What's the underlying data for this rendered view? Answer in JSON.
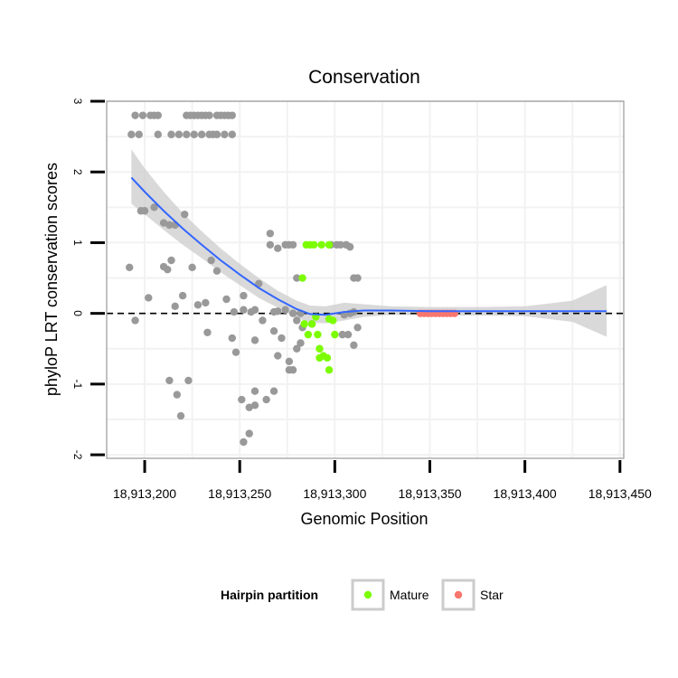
{
  "chart_data": {
    "type": "scatter",
    "title": "Conservation",
    "xlabel": "Genomic Position",
    "ylabel": "phyloP LRT conservation scores",
    "xlim": [
      18913180,
      18913452
    ],
    "ylim": [
      -2.05,
      3.0
    ],
    "x_ticks": [
      18913200,
      18913250,
      18913300,
      18913350,
      18913400,
      18913450
    ],
    "x_tick_labels": [
      "18,913,200",
      "18,913,250",
      "18,913,300",
      "18,913,350",
      "18,913,400",
      "18,913,450"
    ],
    "y_ticks": [
      -2,
      -1,
      0,
      1,
      2,
      3
    ],
    "y_tick_labels": [
      "-2",
      "-1",
      "0",
      "1",
      "2",
      "3"
    ],
    "reference_line": {
      "y": 0,
      "style": "dashed"
    },
    "colors": {
      "other": "#999999",
      "mature": "#7CFC00",
      "star": "#F8766D",
      "smooth_line": "#3366FF",
      "ribbon": "#CCCCCC",
      "panel_grid": "#F2F2F2",
      "panel_border": "#999999"
    },
    "legend": {
      "title": "Hairpin partition",
      "position": "bottom",
      "entries": [
        {
          "label": "Mature",
          "color": "#7CFC00"
        },
        {
          "label": "Star",
          "color": "#F8766D"
        }
      ]
    },
    "series": [
      {
        "name": "Other",
        "color": "#999999",
        "points": [
          [
            18913195,
            2.8
          ],
          [
            18913199,
            2.8
          ],
          [
            18913203,
            2.8
          ],
          [
            18913205,
            2.8
          ],
          [
            18913207,
            2.8
          ],
          [
            18913222,
            2.8
          ],
          [
            18913224,
            2.8
          ],
          [
            18913226,
            2.8
          ],
          [
            18913228,
            2.8
          ],
          [
            18913230,
            2.8
          ],
          [
            18913232,
            2.8
          ],
          [
            18913234,
            2.8
          ],
          [
            18913238,
            2.8
          ],
          [
            18913240,
            2.8
          ],
          [
            18913242,
            2.8
          ],
          [
            18913244,
            2.8
          ],
          [
            18913246,
            2.8
          ],
          [
            18913193,
            2.53
          ],
          [
            18913197,
            2.53
          ],
          [
            18913207,
            2.53
          ],
          [
            18913214,
            2.53
          ],
          [
            18913218,
            2.53
          ],
          [
            18913222,
            2.53
          ],
          [
            18913226,
            2.53
          ],
          [
            18913230,
            2.53
          ],
          [
            18913234,
            2.53
          ],
          [
            18913236,
            2.53
          ],
          [
            18913238,
            2.53
          ],
          [
            18913242,
            2.53
          ],
          [
            18913246,
            2.53
          ],
          [
            18913198,
            1.45
          ],
          [
            18913200,
            1.45
          ],
          [
            18913205,
            1.5
          ],
          [
            18913210,
            1.28
          ],
          [
            18913213,
            1.25
          ],
          [
            18913216,
            1.25
          ],
          [
            18913221,
            1.4
          ],
          [
            18913266,
            1.13
          ],
          [
            18913266,
            0.97
          ],
          [
            18913270,
            0.92
          ],
          [
            18913274,
            0.97
          ],
          [
            18913276,
            0.97
          ],
          [
            18913278,
            0.97
          ],
          [
            18913298,
            0.97
          ],
          [
            18913301,
            0.97
          ],
          [
            18913303,
            0.97
          ],
          [
            18913306,
            0.97
          ],
          [
            18913308,
            0.94
          ],
          [
            18913192,
            0.65
          ],
          [
            18913210,
            0.66
          ],
          [
            18913212,
            0.62
          ],
          [
            18913214,
            0.75
          ],
          [
            18913225,
            0.65
          ],
          [
            18913235,
            0.75
          ],
          [
            18913238,
            0.6
          ],
          [
            18913252,
            0.25
          ],
          [
            18913260,
            0.42
          ],
          [
            18913280,
            0.5
          ],
          [
            18913310,
            0.5
          ],
          [
            18913312,
            0.5
          ],
          [
            18913202,
            0.22
          ],
          [
            18913216,
            0.1
          ],
          [
            18913220,
            0.25
          ],
          [
            18913228,
            0.12
          ],
          [
            18913232,
            0.15
          ],
          [
            18913243,
            0.2
          ],
          [
            18913247,
            0.02
          ],
          [
            18913252,
            0.05
          ],
          [
            18913256,
            0.02
          ],
          [
            18913258,
            0.05
          ],
          [
            18913268,
            0.02
          ],
          [
            18913270,
            0.03
          ],
          [
            18913274,
            0.05
          ],
          [
            18913278,
            0.0
          ],
          [
            18913282,
            0.0
          ],
          [
            18913305,
            -0.02
          ],
          [
            18913308,
            0.0
          ],
          [
            18913310,
            0.02
          ],
          [
            18913195,
            -0.1
          ],
          [
            18913262,
            -0.1
          ],
          [
            18913268,
            -0.25
          ],
          [
            18913272,
            -0.35
          ],
          [
            18913280,
            -0.1
          ],
          [
            18913283,
            -0.2
          ],
          [
            18913288,
            -0.15
          ],
          [
            18913304,
            -0.3
          ],
          [
            18913307,
            -0.3
          ],
          [
            18913310,
            -0.45
          ],
          [
            18913312,
            -0.2
          ],
          [
            18913233,
            -0.27
          ],
          [
            18913246,
            -0.35
          ],
          [
            18913248,
            -0.55
          ],
          [
            18913258,
            -0.38
          ],
          [
            18913270,
            -0.6
          ],
          [
            18913276,
            -0.68
          ],
          [
            18913280,
            -0.5
          ],
          [
            18913282,
            -0.42
          ],
          [
            18913276,
            -0.8
          ],
          [
            18913278,
            -0.8
          ],
          [
            18913213,
            -0.95
          ],
          [
            18913217,
            -1.15
          ],
          [
            18913219,
            -1.45
          ],
          [
            18913223,
            -0.95
          ],
          [
            18913251,
            -1.22
          ],
          [
            18913255,
            -1.33
          ],
          [
            18913258,
            -1.1
          ],
          [
            18913258,
            -1.3
          ],
          [
            18913264,
            -1.22
          ],
          [
            18913268,
            -1.1
          ],
          [
            18913252,
            -1.82
          ],
          [
            18913255,
            -1.7
          ]
        ]
      },
      {
        "name": "Mature",
        "color": "#7CFC00",
        "points": [
          [
            18913283,
            0.5
          ],
          [
            18913285,
            0.97
          ],
          [
            18913287,
            0.97
          ],
          [
            18913289,
            0.97
          ],
          [
            18913293,
            0.97
          ],
          [
            18913297,
            0.97
          ],
          [
            18913284,
            -0.15
          ],
          [
            18913286,
            -0.3
          ],
          [
            18913288,
            -0.15
          ],
          [
            18913290,
            -0.05
          ],
          [
            18913291,
            -0.3
          ],
          [
            18913292,
            -0.5
          ],
          [
            18913294,
            -0.6
          ],
          [
            18913292,
            -0.63
          ],
          [
            18913296,
            -0.63
          ],
          [
            18913297,
            -0.08
          ],
          [
            18913299,
            -0.1
          ],
          [
            18913300,
            -0.3
          ],
          [
            18913297,
            -0.8
          ]
        ]
      },
      {
        "name": "Star",
        "color": "#F8766D",
        "points": [
          [
            18913345,
            0.0
          ],
          [
            18913347,
            0.0
          ],
          [
            18913349,
            0.0
          ],
          [
            18913351,
            0.0
          ],
          [
            18913353,
            0.0
          ],
          [
            18913355,
            0.0
          ],
          [
            18913357,
            0.0
          ],
          [
            18913359,
            0.0
          ],
          [
            18913361,
            0.0
          ],
          [
            18913363,
            0.0
          ]
        ]
      }
    ],
    "smooth": {
      "method": "loess",
      "fit": [
        [
          18913193,
          1.92
        ],
        [
          18913200,
          1.72
        ],
        [
          18913210,
          1.45
        ],
        [
          18913220,
          1.2
        ],
        [
          18913230,
          0.97
        ],
        [
          18913240,
          0.75
        ],
        [
          18913250,
          0.55
        ],
        [
          18913260,
          0.36
        ],
        [
          18913270,
          0.2
        ],
        [
          18913280,
          0.06
        ],
        [
          18913287,
          -0.01
        ],
        [
          18913295,
          -0.02
        ],
        [
          18913305,
          0.02
        ],
        [
          18913315,
          0.04
        ],
        [
          18913330,
          0.04
        ],
        [
          18913350,
          0.03
        ],
        [
          18913375,
          0.03
        ],
        [
          18913400,
          0.03
        ],
        [
          18913425,
          0.03
        ],
        [
          18913443,
          0.03
        ]
      ],
      "upper": [
        [
          18913193,
          2.32
        ],
        [
          18913200,
          2.05
        ],
        [
          18913210,
          1.72
        ],
        [
          18913220,
          1.42
        ],
        [
          18913230,
          1.16
        ],
        [
          18913240,
          0.92
        ],
        [
          18913250,
          0.7
        ],
        [
          18913260,
          0.5
        ],
        [
          18913270,
          0.32
        ],
        [
          18913280,
          0.18
        ],
        [
          18913287,
          0.11
        ],
        [
          18913295,
          0.1
        ],
        [
          18913305,
          0.15
        ],
        [
          18913315,
          0.13
        ],
        [
          18913330,
          0.1
        ],
        [
          18913350,
          0.09
        ],
        [
          18913375,
          0.09
        ],
        [
          18913400,
          0.1
        ],
        [
          18913425,
          0.18
        ],
        [
          18913443,
          0.4
        ]
      ],
      "lower": [
        [
          18913193,
          1.55
        ],
        [
          18913200,
          1.4
        ],
        [
          18913210,
          1.18
        ],
        [
          18913220,
          0.97
        ],
        [
          18913230,
          0.78
        ],
        [
          18913240,
          0.58
        ],
        [
          18913250,
          0.4
        ],
        [
          18913260,
          0.22
        ],
        [
          18913270,
          0.08
        ],
        [
          18913280,
          -0.06
        ],
        [
          18913287,
          -0.13
        ],
        [
          18913295,
          -0.14
        ],
        [
          18913305,
          -0.1
        ],
        [
          18913315,
          -0.05
        ],
        [
          18913330,
          -0.02
        ],
        [
          18913350,
          -0.03
        ],
        [
          18913375,
          -0.03
        ],
        [
          18913400,
          -0.04
        ],
        [
          18913425,
          -0.12
        ],
        [
          18913443,
          -0.33
        ]
      ]
    }
  }
}
